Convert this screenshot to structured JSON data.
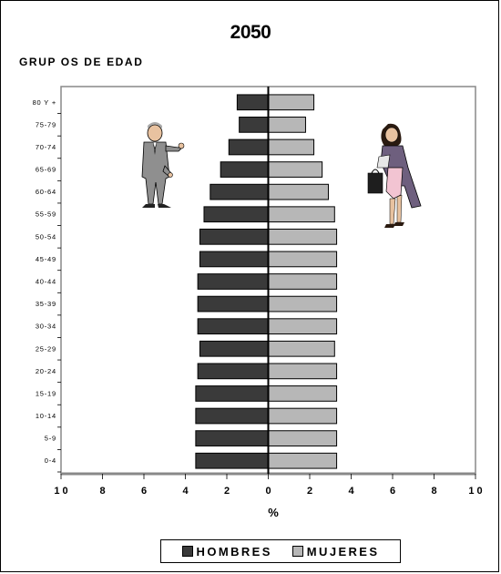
{
  "chart_data": {
    "type": "bar",
    "title": "2050",
    "ylabel": "GRUP OS DE EDAD",
    "xlabel": "%",
    "xlim": [
      -10,
      10
    ],
    "x_ticks": [
      -10,
      -8,
      -6,
      -4,
      -2,
      0,
      2,
      4,
      6,
      8,
      10
    ],
    "x_tick_labels": [
      "1 0",
      "8",
      "6",
      "4",
      "2",
      "0",
      "2",
      "4",
      "6",
      "8",
      "1 0"
    ],
    "categories": [
      "80 Y +",
      "75-79",
      "70-74",
      "65-69",
      "60-64",
      "55-59",
      "50-54",
      "45-49",
      "40-44",
      "35-39",
      "30-34",
      "25-29",
      "20-24",
      "15-19",
      "10-14",
      "5-9",
      "0-4"
    ],
    "series": [
      {
        "name": "HOMBRES",
        "color": "#3a3a3a",
        "values": [
          1.5,
          1.4,
          1.9,
          2.3,
          2.8,
          3.1,
          3.3,
          3.3,
          3.4,
          3.4,
          3.4,
          3.3,
          3.4,
          3.5,
          3.5,
          3.5,
          3.5
        ]
      },
      {
        "name": "MUJERES",
        "color": "#b7b7b7",
        "values": [
          2.2,
          1.8,
          2.2,
          2.6,
          2.9,
          3.2,
          3.3,
          3.3,
          3.3,
          3.3,
          3.3,
          3.2,
          3.3,
          3.3,
          3.3,
          3.3,
          3.3
        ]
      }
    ],
    "legend_position": "bottom-center",
    "grid": false
  },
  "legend": {
    "hombres": "HOMBRES",
    "mujeres": "MUJERES"
  },
  "icons": {
    "left": "businessman-figure-icon",
    "right": "businesswoman-figure-icon"
  }
}
